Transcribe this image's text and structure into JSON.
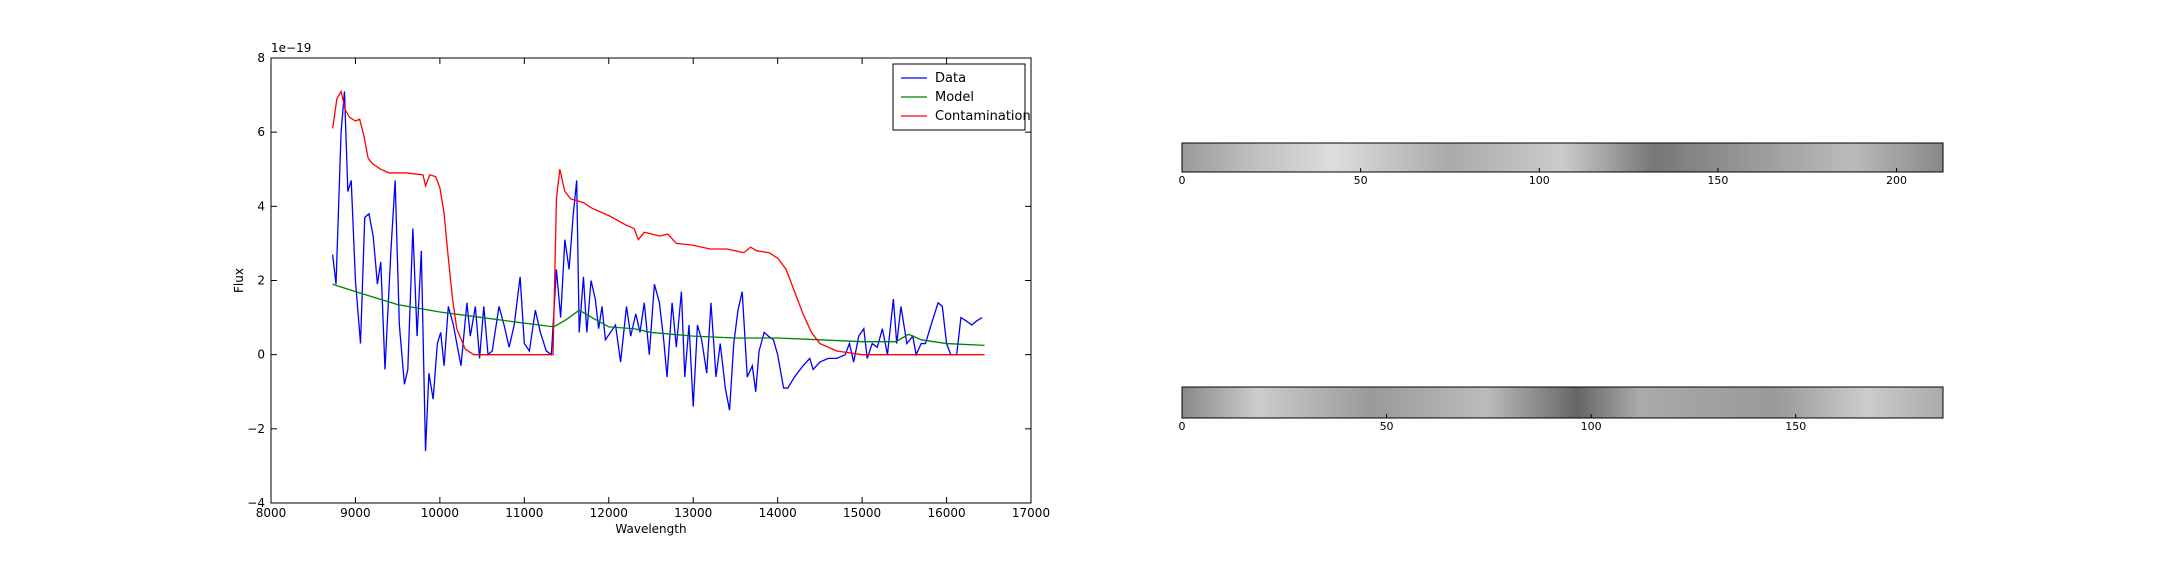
{
  "chart_data": [
    {
      "type": "line",
      "offset_label": "1e−19",
      "xlabel": "Wavelength",
      "ylabel": "Flux",
      "xlim": [
        8000,
        17000
      ],
      "xticks": [
        8000,
        9000,
        10000,
        11000,
        12000,
        13000,
        14000,
        15000,
        16000,
        17000
      ],
      "ylim": [
        -4,
        8
      ],
      "yticks": [
        {
          "value": -4,
          "label": "−4"
        },
        {
          "value": -2,
          "label": "−2"
        },
        0,
        2,
        4,
        6,
        8
      ],
      "legend": "upper right",
      "series": [
        {
          "name": "Data",
          "color": "#0000ff",
          "x": [
            8730,
            8770,
            8830,
            8870,
            8910,
            8950,
            9000,
            9060,
            9110,
            9160,
            9210,
            9260,
            9300,
            9350,
            9420,
            9470,
            9520,
            9580,
            9620,
            9680,
            9730,
            9780,
            9830,
            9870,
            9920,
            9970,
            10010,
            10050,
            10100,
            10160,
            10200,
            10250,
            10320,
            10360,
            10420,
            10470,
            10520,
            10570,
            10620,
            10700,
            10760,
            10820,
            10880,
            10950,
            11000,
            11060,
            11130,
            11190,
            11260,
            11320,
            11380,
            11430,
            11480,
            11530,
            11580,
            11620,
            11650,
            11700,
            11740,
            11790,
            11840,
            11880,
            11920,
            11960,
            12020,
            12080,
            12140,
            12210,
            12260,
            12320,
            12370,
            12420,
            12480,
            12540,
            12600,
            12650,
            12690,
            12750,
            12800,
            12860,
            12900,
            12950,
            13000,
            13050,
            13100,
            13160,
            13210,
            13270,
            13320,
            13380,
            13430,
            13480,
            13530,
            13580,
            13640,
            13700,
            13740,
            13780,
            13840,
            13890,
            13950,
            14000,
            14070,
            14120,
            14200,
            14300,
            14380,
            14420,
            14500,
            14600,
            14700,
            14800,
            14850,
            14900,
            14960,
            15020,
            15060,
            15120,
            15180,
            15240,
            15300,
            15370,
            15410,
            15460,
            15530,
            15600,
            15640,
            15700,
            15750,
            15830,
            15900,
            15950,
            16000,
            16050,
            16120,
            16170,
            16240,
            16300,
            16350,
            16420
          ],
          "values": [
            2.7,
            1.9,
            6.0,
            7.1,
            4.4,
            4.7,
            2.0,
            0.3,
            3.7,
            3.8,
            3.2,
            1.9,
            2.5,
            -0.4,
            2.8,
            4.7,
            0.8,
            -0.8,
            -0.4,
            3.4,
            0.5,
            2.8,
            -2.6,
            -0.5,
            -1.2,
            0.3,
            0.6,
            -0.3,
            1.3,
            0.8,
            0.3,
            -0.3,
            1.4,
            0.5,
            1.3,
            -0.1,
            1.3,
            0.0,
            0.1,
            1.3,
            0.8,
            0.2,
            0.8,
            2.1,
            0.3,
            0.1,
            1.2,
            0.6,
            0.1,
            0.0,
            2.3,
            1.0,
            3.1,
            2.3,
            3.8,
            4.7,
            0.6,
            2.1,
            0.6,
            2.0,
            1.5,
            0.7,
            1.3,
            0.4,
            0.6,
            0.8,
            -0.2,
            1.3,
            0.5,
            1.1,
            0.6,
            1.4,
            0.0,
            1.9,
            1.4,
            0.4,
            -0.6,
            1.4,
            0.2,
            1.7,
            -0.6,
            0.8,
            -1.4,
            0.8,
            0.4,
            -0.5,
            1.4,
            -0.6,
            0.3,
            -0.9,
            -1.5,
            0.3,
            1.2,
            1.7,
            -0.6,
            -0.3,
            -1.0,
            0.1,
            0.6,
            0.5,
            0.4,
            0.0,
            -0.9,
            -0.9,
            -0.6,
            -0.3,
            -0.1,
            -0.4,
            -0.2,
            -0.1,
            -0.1,
            0.0,
            0.3,
            -0.2,
            0.5,
            0.7,
            -0.1,
            0.3,
            0.2,
            0.7,
            0.0,
            1.5,
            0.3,
            1.3,
            0.3,
            0.5,
            0.0,
            0.3,
            0.3,
            0.9,
            1.4,
            1.3,
            0.3,
            0.0,
            0.0,
            1.0,
            0.9,
            0.8,
            0.9,
            1.0
          ]
        },
        {
          "name": "Model",
          "color": "#008000",
          "x": [
            8730,
            9000,
            9500,
            10000,
            10500,
            11000,
            11350,
            11500,
            11650,
            11800,
            12000,
            12300,
            12500,
            13000,
            13500,
            14000,
            14500,
            15000,
            15400,
            15550,
            15700,
            16000,
            16450
          ],
          "values": [
            1.9,
            1.7,
            1.35,
            1.15,
            1.0,
            0.85,
            0.75,
            0.95,
            1.2,
            1.0,
            0.75,
            0.7,
            0.6,
            0.5,
            0.45,
            0.45,
            0.4,
            0.35,
            0.35,
            0.55,
            0.4,
            0.3,
            0.25
          ]
        },
        {
          "name": "Contamination",
          "color": "#ff0000",
          "x": [
            8730,
            8780,
            8830,
            8880,
            8930,
            9000,
            9050,
            9100,
            9150,
            9200,
            9300,
            9400,
            9600,
            9800,
            9830,
            9880,
            9950,
            10000,
            10050,
            10100,
            10150,
            10200,
            10300,
            10400,
            11340,
            11380,
            11420,
            11480,
            11550,
            11700,
            11800,
            12000,
            12200,
            12300,
            12350,
            12420,
            12600,
            12700,
            12800,
            13000,
            13200,
            13400,
            13600,
            13680,
            13750,
            13900,
            14000,
            14100,
            14200,
            14300,
            14400,
            14500,
            14700,
            15000,
            16450
          ],
          "values": [
            6.1,
            6.9,
            7.1,
            6.6,
            6.4,
            6.3,
            6.35,
            5.9,
            5.3,
            5.15,
            5.0,
            4.9,
            4.9,
            4.85,
            4.55,
            4.85,
            4.8,
            4.5,
            3.8,
            2.6,
            1.5,
            0.7,
            0.15,
            0.0,
            0.0,
            4.2,
            5.0,
            4.4,
            4.2,
            4.1,
            3.95,
            3.75,
            3.5,
            3.4,
            3.1,
            3.3,
            3.2,
            3.25,
            3.0,
            2.95,
            2.85,
            2.85,
            2.75,
            2.9,
            2.8,
            2.75,
            2.6,
            2.3,
            1.7,
            1.1,
            0.6,
            0.3,
            0.1,
            0.0,
            0.0
          ]
        }
      ]
    },
    {
      "type": "image",
      "xlim": [
        0,
        213
      ],
      "xticks": [
        0,
        50,
        100,
        150,
        200
      ]
    },
    {
      "type": "image",
      "xlim": [
        0,
        186
      ],
      "xticks": [
        0,
        50,
        100,
        150
      ]
    }
  ]
}
